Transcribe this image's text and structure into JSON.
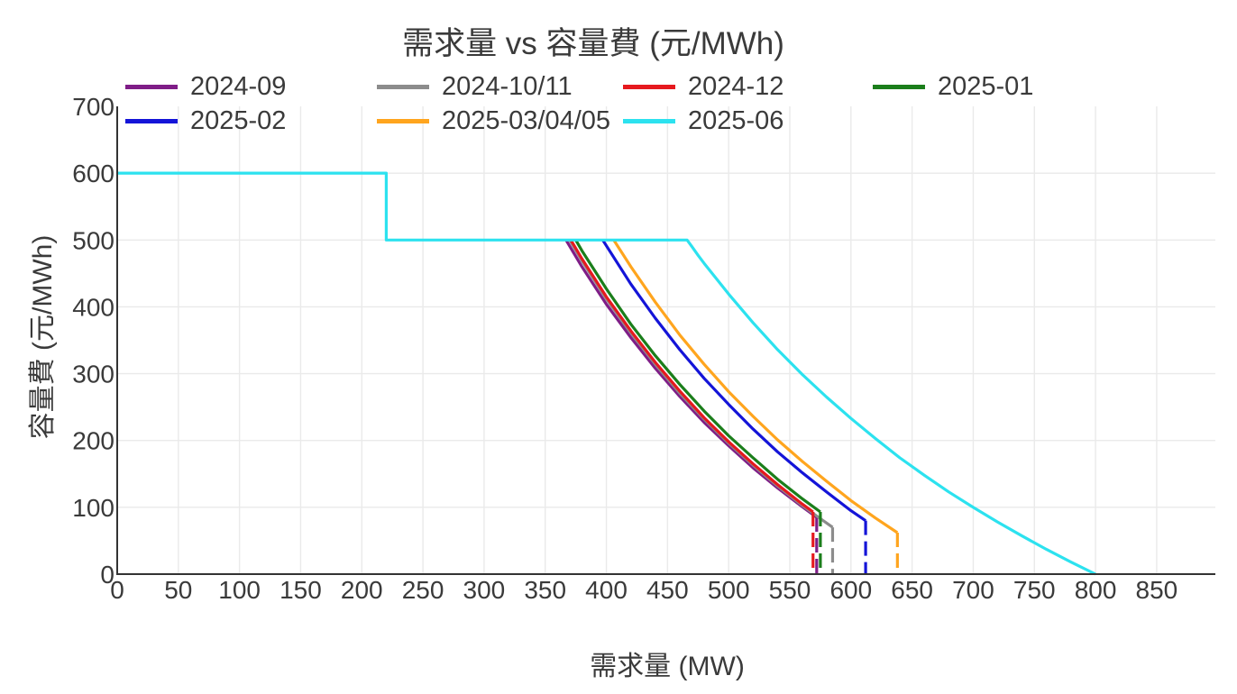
{
  "chart_data": {
    "type": "line",
    "title": "需求量 vs 容量費 (元/MWh)",
    "xlabel": "需求量 (MW)",
    "ylabel": "容量費 (元/MWh)",
    "xlim": [
      0,
      898
    ],
    "ylim": [
      0,
      700
    ],
    "xticks": [
      0,
      50,
      100,
      150,
      200,
      250,
      300,
      350,
      400,
      450,
      500,
      550,
      600,
      650,
      700,
      750,
      800,
      850
    ],
    "yticks": [
      0,
      100,
      200,
      300,
      400,
      500,
      600,
      700
    ],
    "grid": true,
    "legend_position": "top",
    "series": [
      {
        "name": "2024-09",
        "color": "#7f1d87",
        "points": [
          [
            367,
            500
          ],
          [
            380,
            460
          ],
          [
            400,
            404
          ],
          [
            420,
            354
          ],
          [
            440,
            308
          ],
          [
            460,
            266
          ],
          [
            480,
            227
          ],
          [
            500,
            192
          ],
          [
            520,
            159
          ],
          [
            540,
            129
          ],
          [
            560,
            101
          ],
          [
            572,
            85
          ]
        ],
        "drop": {
          "x": 572,
          "from": 85
        }
      },
      {
        "name": "2024-10/11",
        "color": "#8c8c8c",
        "points": [
          [
            370,
            500
          ],
          [
            380,
            469
          ],
          [
            400,
            412
          ],
          [
            420,
            361
          ],
          [
            440,
            314
          ],
          [
            460,
            271
          ],
          [
            480,
            232
          ],
          [
            500,
            196
          ],
          [
            520,
            163
          ],
          [
            540,
            132
          ],
          [
            560,
            103
          ],
          [
            572,
            87
          ],
          [
            585,
            70
          ]
        ],
        "drop": {
          "x": 585,
          "from": 70
        }
      },
      {
        "name": "2024-12",
        "color": "#e6191e",
        "points": [
          [
            371,
            500
          ],
          [
            380,
            472
          ],
          [
            400,
            415
          ],
          [
            420,
            364
          ],
          [
            440,
            317
          ],
          [
            460,
            274
          ],
          [
            480,
            234
          ],
          [
            500,
            198
          ],
          [
            520,
            165
          ],
          [
            540,
            134
          ],
          [
            560,
            105
          ],
          [
            569,
            93
          ]
        ],
        "drop": {
          "x": 569,
          "from": 93
        }
      },
      {
        "name": "2025-01",
        "color": "#1b7e1b",
        "points": [
          [
            375,
            500
          ],
          [
            380,
            484
          ],
          [
            400,
            427
          ],
          [
            420,
            374
          ],
          [
            440,
            327
          ],
          [
            460,
            284
          ],
          [
            480,
            244
          ],
          [
            500,
            207
          ],
          [
            520,
            174
          ],
          [
            540,
            142
          ],
          [
            560,
            113
          ],
          [
            575,
            93
          ]
        ],
        "drop": {
          "x": 575,
          "from": 93
        }
      },
      {
        "name": "2025-02",
        "color": "#1414d8",
        "points": [
          [
            397,
            500
          ],
          [
            420,
            434
          ],
          [
            440,
            383
          ],
          [
            460,
            336
          ],
          [
            480,
            293
          ],
          [
            500,
            254
          ],
          [
            520,
            217
          ],
          [
            540,
            183
          ],
          [
            560,
            152
          ],
          [
            580,
            123
          ],
          [
            600,
            95
          ],
          [
            612,
            80
          ]
        ],
        "drop": {
          "x": 612,
          "from": 80
        }
      },
      {
        "name": "2025-03/04/05",
        "color": "#ffa51e",
        "points": [
          [
            406,
            500
          ],
          [
            420,
            460
          ],
          [
            440,
            407
          ],
          [
            460,
            358
          ],
          [
            480,
            314
          ],
          [
            500,
            273
          ],
          [
            520,
            236
          ],
          [
            540,
            201
          ],
          [
            560,
            169
          ],
          [
            580,
            139
          ],
          [
            600,
            110
          ],
          [
            620,
            84
          ],
          [
            638,
            62
          ]
        ],
        "drop": {
          "x": 638,
          "from": 62
        }
      },
      {
        "name": "2025-06",
        "color": "#2ce2ef",
        "points": [
          [
            0,
            600
          ],
          [
            220,
            600
          ],
          [
            220,
            500
          ],
          [
            466,
            500
          ],
          [
            470,
            490
          ],
          [
            475,
            477
          ],
          [
            480,
            465
          ],
          [
            500,
            419
          ],
          [
            520,
            376
          ],
          [
            540,
            336
          ],
          [
            560,
            299
          ],
          [
            580,
            265
          ],
          [
            600,
            233
          ],
          [
            620,
            203
          ],
          [
            640,
            174
          ],
          [
            660,
            148
          ],
          [
            680,
            123
          ],
          [
            700,
            100
          ],
          [
            720,
            78
          ],
          [
            740,
            57
          ],
          [
            760,
            37
          ],
          [
            780,
            18
          ],
          [
            800,
            0
          ]
        ]
      }
    ],
    "legend_entries": [
      "2024-09",
      "2025-02",
      "2024-10/11",
      "2025-03/04/05",
      "2024-12",
      "2025-06",
      "2025-01"
    ]
  }
}
